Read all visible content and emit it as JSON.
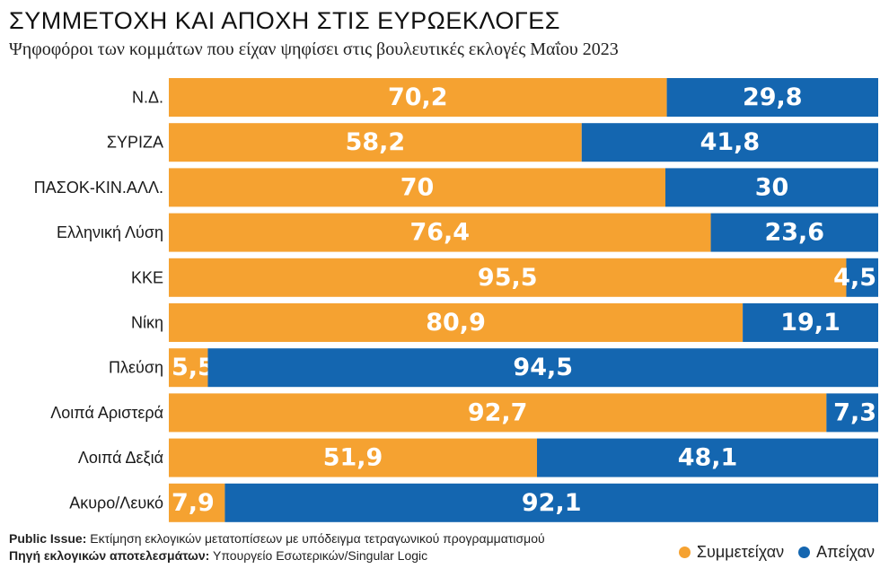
{
  "title": "ΣΥΜΜΕΤΟΧΗ ΚΑΙ ΑΠΟΧΗ ΣΤΙΣ ΕΥΡΩΕΚΛΟΓΕΣ",
  "subtitle": "Ψηφοφόροι των κομμάτων που είχαν ψηφίσει στις βουλευτικές εκλογές Μαΐου 2023",
  "footer": {
    "line1_bold": "Public Issue:",
    "line1_text": " Εκτίμηση εκλογικών μετατοπίσεων με υπόδειγμα τετραγωνικού προγραμματισμού",
    "line2_bold": "Πηγή εκλογικών αποτελεσμάτων:",
    "line2_text": " Υπουργείο Εσωτερικών/Singular Logic"
  },
  "legend": {
    "participated": "Συμμετείχαν",
    "abstained": "Απείχαν"
  },
  "colors": {
    "participated": "#F5A231",
    "abstained": "#1466B0"
  },
  "chart_data": {
    "type": "bar",
    "orientation": "horizontal",
    "stacked": true,
    "xlim": [
      0,
      100
    ],
    "legend_position": "bottom-right",
    "categories": [
      "Ν.Δ.",
      "ΣΥΡΙΖΑ",
      "ΠΑΣΟΚ-ΚΙΝ.ΑΛΛ.",
      "Ελληνική Λύση",
      "ΚΚΕ",
      "Νίκη",
      "Πλεύση",
      "Λοιπά Αριστερά",
      "Λοιπά Δεξιά",
      "Ακυρο/Λευκό"
    ],
    "series": [
      {
        "name": "Συμμετείχαν",
        "values": [
          70.2,
          58.2,
          70,
          76.4,
          95.5,
          80.9,
          5.5,
          92.7,
          51.9,
          7.9
        ],
        "labels": [
          "70,2",
          "58,2",
          "70",
          "76,4",
          "95,5",
          "80,9",
          "5,5",
          "92,7",
          "51,9",
          "7,9"
        ]
      },
      {
        "name": "Απείχαν",
        "values": [
          29.8,
          41.8,
          30,
          23.6,
          4.5,
          19.1,
          94.5,
          7.3,
          48.1,
          92.1
        ],
        "labels": [
          "29,8",
          "41,8",
          "30",
          "23,6",
          "4,5",
          "19,1",
          "94,5",
          "7,3",
          "48,1",
          "92,1"
        ]
      }
    ]
  }
}
